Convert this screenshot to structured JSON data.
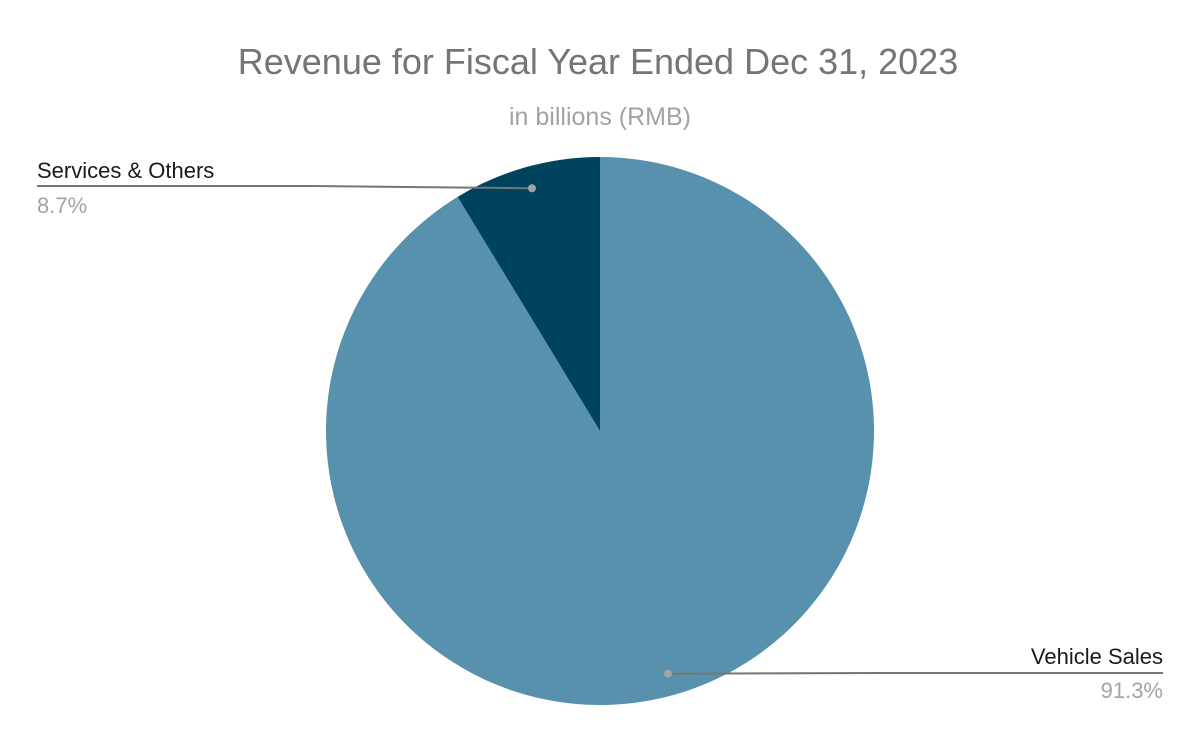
{
  "chart_data": {
    "type": "pie",
    "title": "Revenue for Fiscal Year Ended Dec 31, 2023",
    "subtitle": "in billions (RMB)",
    "slices": [
      {
        "label": "Vehicle Sales",
        "value": 91.3,
        "value_label": "91.3%",
        "color": "#5891ae"
      },
      {
        "label": "Services & Others",
        "value": 8.7,
        "value_label": "8.7%",
        "color": "#00435f"
      }
    ],
    "start_angle_deg": 0,
    "direction": "clockwise",
    "legend": "none",
    "labels": "outside with leader lines"
  }
}
